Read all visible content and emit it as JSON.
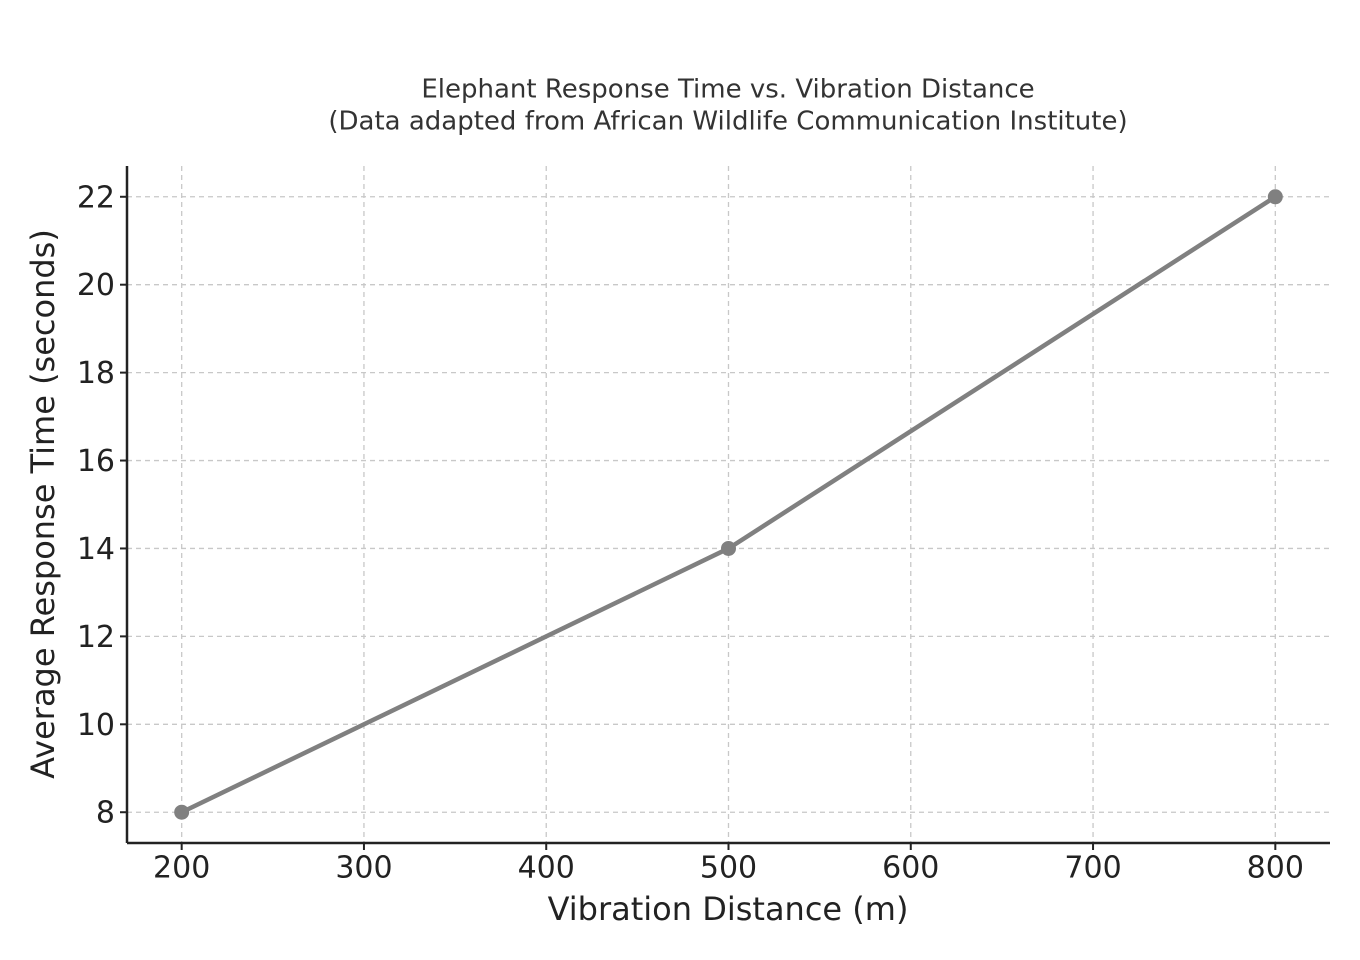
{
  "chart_data": {
    "type": "line",
    "title": "Elephant Response Time vs. Vibration Distance",
    "subtitle": "(Data adapted from African Wildlife Communication Institute)",
    "x_label": "Vibration Distance (m)",
    "y_label": "Average Response Time (seconds)",
    "x": [
      200,
      500,
      800
    ],
    "values": [
      8,
      14,
      22
    ],
    "color": "#808080",
    "markers": true,
    "xlim": [
      170,
      830
    ],
    "ylim": [
      7.3,
      22.7
    ],
    "xticks": [
      200,
      300,
      400,
      500,
      600,
      700,
      800
    ],
    "yticks": [
      8,
      10,
      12,
      14,
      16,
      18,
      20,
      22
    ],
    "grid": true
  }
}
